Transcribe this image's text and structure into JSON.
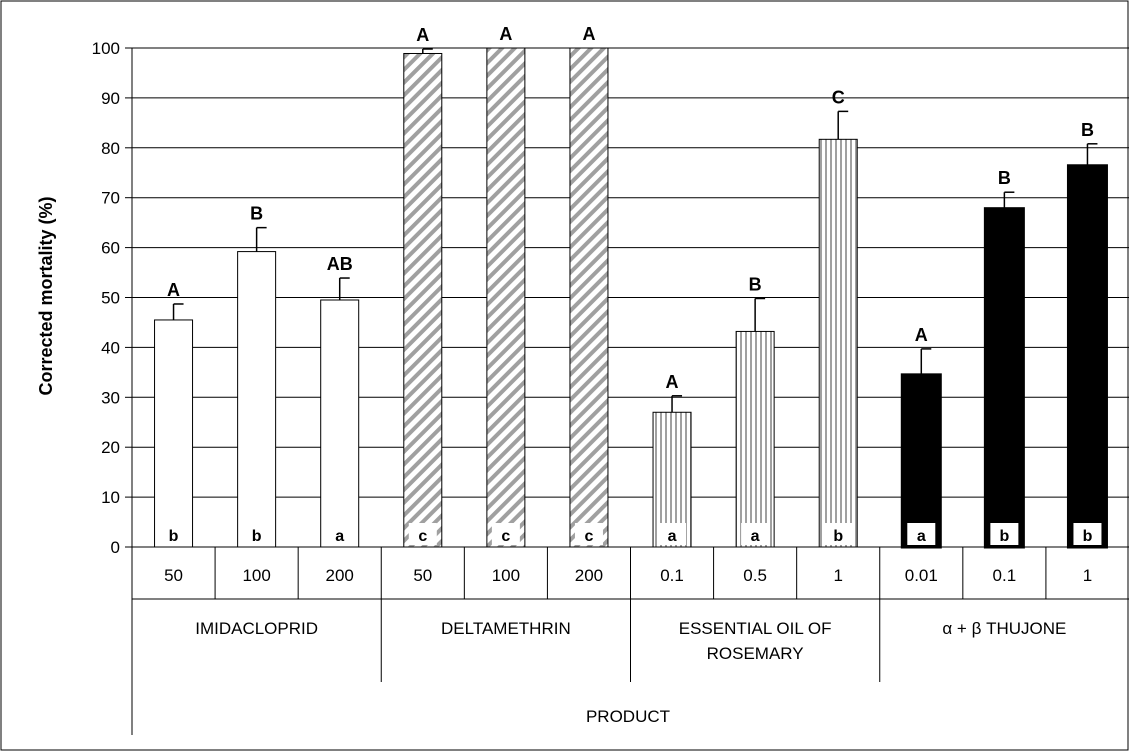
{
  "chart_data": {
    "type": "bar",
    "ylabel": "Corrected mortality (%)",
    "xlabel": "PRODUCT",
    "ylim": [
      0,
      100
    ],
    "yticks": [
      0,
      10,
      20,
      30,
      40,
      50,
      60,
      70,
      80,
      90,
      100
    ],
    "grid": "horizontal",
    "groups": [
      {
        "name": "IMIDACLOPRID",
        "fill": "white",
        "bars": [
          {
            "dose": "50",
            "value": 45.5,
            "error": 3.2,
            "upper_letter": "A",
            "lower_letter": "b"
          },
          {
            "dose": "100",
            "value": 59.2,
            "error": 4.8,
            "upper_letter": "B",
            "lower_letter": "b"
          },
          {
            "dose": "200",
            "value": 49.5,
            "error": 4.4,
            "upper_letter": "AB",
            "lower_letter": "a"
          }
        ]
      },
      {
        "name": "DELTAMETHRIN",
        "fill": "diagonal-hatch",
        "bars": [
          {
            "dose": "50",
            "value": 98.9,
            "error": 0.9,
            "upper_letter": "A",
            "lower_letter": "c"
          },
          {
            "dose": "100",
            "value": 100,
            "error": 0,
            "upper_letter": "A",
            "lower_letter": "c"
          },
          {
            "dose": "200",
            "value": 100,
            "error": 0,
            "upper_letter": "A",
            "lower_letter": "c"
          }
        ]
      },
      {
        "name": "ESSENTIAL OIL OF ROSEMARY",
        "name_lines": [
          "ESSENTIAL OIL OF",
          "ROSEMARY"
        ],
        "fill": "vertical-hatch",
        "bars": [
          {
            "dose": "0.1",
            "value": 27.0,
            "error": 3.3,
            "upper_letter": "A",
            "lower_letter": "a"
          },
          {
            "dose": "0.5",
            "value": 43.2,
            "error": 6.6,
            "upper_letter": "B",
            "lower_letter": "a"
          },
          {
            "dose": "1",
            "value": 81.7,
            "error": 5.6,
            "upper_letter": "C",
            "lower_letter": "b"
          }
        ]
      },
      {
        "name": "α + β THUJONE",
        "fill": "black",
        "bars": [
          {
            "dose": "0.01",
            "value": 34.5,
            "error": 5.2,
            "upper_letter": "A",
            "lower_letter": "a"
          },
          {
            "dose": "0.1",
            "value": 67.8,
            "error": 3.3,
            "upper_letter": "B",
            "lower_letter": "b"
          },
          {
            "dose": "1",
            "value": 76.4,
            "error": 4.4,
            "upper_letter": "B",
            "lower_letter": "b"
          }
        ]
      }
    ],
    "colors": {
      "grid": "#000000",
      "hatch": "#a0a0a0",
      "black_bar": "#000000",
      "frame": "#000000"
    }
  }
}
